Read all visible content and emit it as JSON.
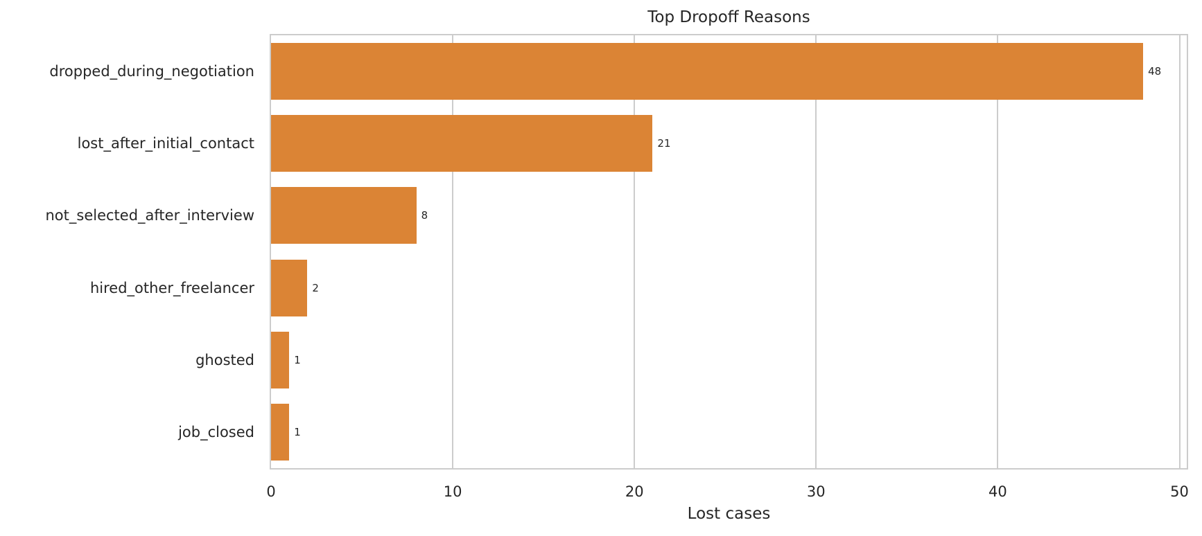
{
  "chart_data": {
    "type": "bar",
    "orientation": "horizontal",
    "title": "Top Dropoff Reasons",
    "xlabel": "Lost cases",
    "ylabel": "",
    "categories": [
      "dropped_during_negotiation",
      "lost_after_initial_contact",
      "not_selected_after_interview",
      "hired_other_freelancer",
      "ghosted",
      "job_closed"
    ],
    "values": [
      48,
      21,
      8,
      2,
      1,
      1
    ],
    "data_labels": [
      "48",
      "21",
      "8",
      "2",
      "1",
      "1"
    ],
    "xlim": [
      0,
      50.4
    ],
    "xticks": [
      0,
      10,
      20,
      30,
      40,
      50
    ],
    "xtick_labels": [
      "0",
      "10",
      "20",
      "30",
      "40",
      "50"
    ],
    "grid": "vertical",
    "legend": null,
    "bar_color": "#db8435"
  }
}
